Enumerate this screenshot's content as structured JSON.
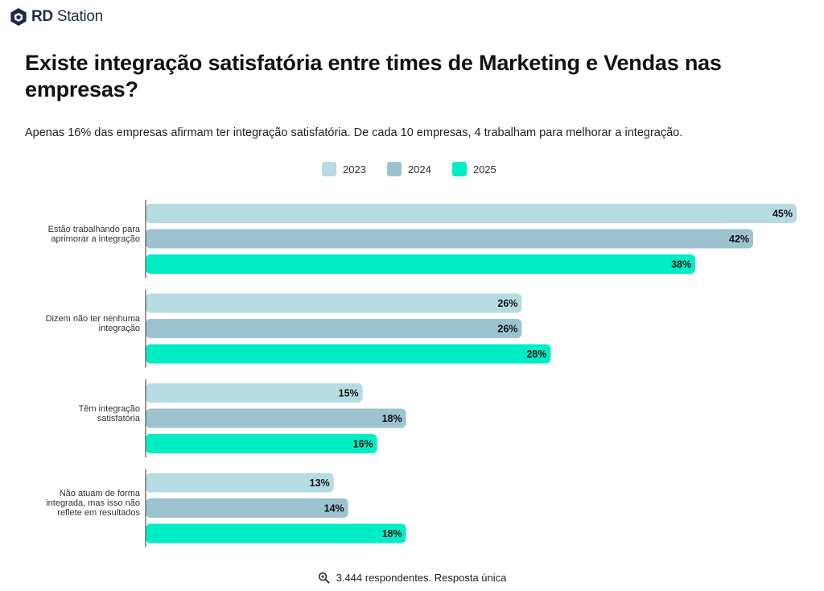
{
  "brand": {
    "name_bold": "RD",
    "name_rest": " Station",
    "logo_icon": "rd-station-hexagon-icon",
    "color": "#1f2a44"
  },
  "header": {
    "title": "Existe integração satisfatória entre times de Marketing e Vendas nas empresas?",
    "subtitle": "Apenas 16% das empresas afirmam ter integração satisfatória. De cada 10 empresas, 4 trabalham para melhorar a integração."
  },
  "legend": [
    {
      "label": "2023",
      "color": "#b6dbe3"
    },
    {
      "label": "2024",
      "color": "#9cc3cf"
    },
    {
      "label": "2025",
      "color": "#00eec6"
    }
  ],
  "chart_data": {
    "type": "bar",
    "orientation": "horizontal",
    "title": "Existe integração satisfatória entre times de Marketing e Vendas nas empresas?",
    "legend_position": "top-center",
    "grid": false,
    "value_suffix": "%",
    "xlim": [
      0,
      45
    ],
    "categories": [
      [
        "Estão trabalhando para",
        "aprimorar a integração"
      ],
      [
        "Dizem não ter nenhuma",
        "integração"
      ],
      [
        "Têm integração",
        "satisfatória"
      ],
      [
        "Não atuam de forma",
        "integrada, mas isso não",
        "reflete em resultados"
      ]
    ],
    "series": [
      {
        "name": "2023",
        "color": "#b6dbe3",
        "values": [
          45,
          26,
          15,
          13
        ]
      },
      {
        "name": "2024",
        "color": "#9cc3cf",
        "values": [
          42,
          26,
          18,
          14
        ]
      },
      {
        "name": "2025",
        "color": "#00eec6",
        "values": [
          38,
          28,
          16,
          18
        ]
      }
    ]
  },
  "footer": {
    "icon": "magnifier-icon",
    "text": "3.444 respondentes. Resposta única"
  }
}
